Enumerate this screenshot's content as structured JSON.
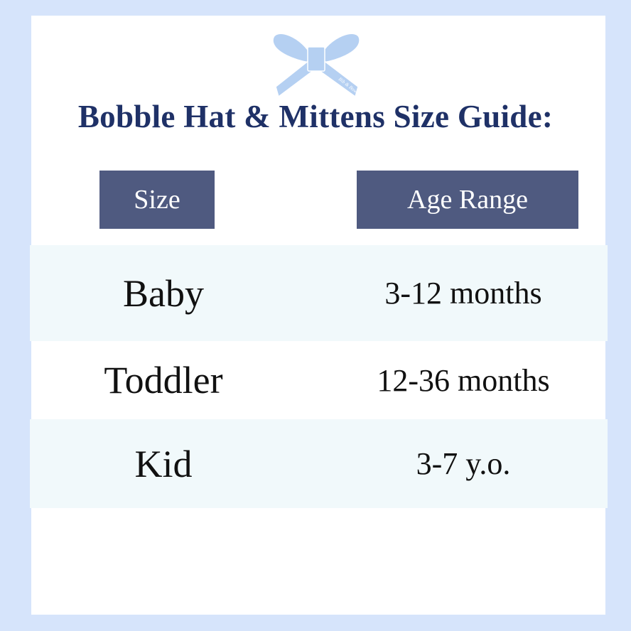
{
  "logo": {
    "text": "Bib & Bows",
    "color": "#b5d0f2"
  },
  "title": "Bobble Hat & Mittens Size Guide:",
  "headers": {
    "size": "Size",
    "age": "Age Range"
  },
  "rows": [
    {
      "size": "Baby",
      "age": "3-12 months"
    },
    {
      "size": "Toddler",
      "age": "12-36 months"
    },
    {
      "size": "Kid",
      "age": "3-7 y.o."
    }
  ],
  "colors": {
    "title": "#1f3167",
    "header_bg": "#4f5a80",
    "row_shade": "#f1f9fb",
    "background": "#d6e4fb"
  }
}
